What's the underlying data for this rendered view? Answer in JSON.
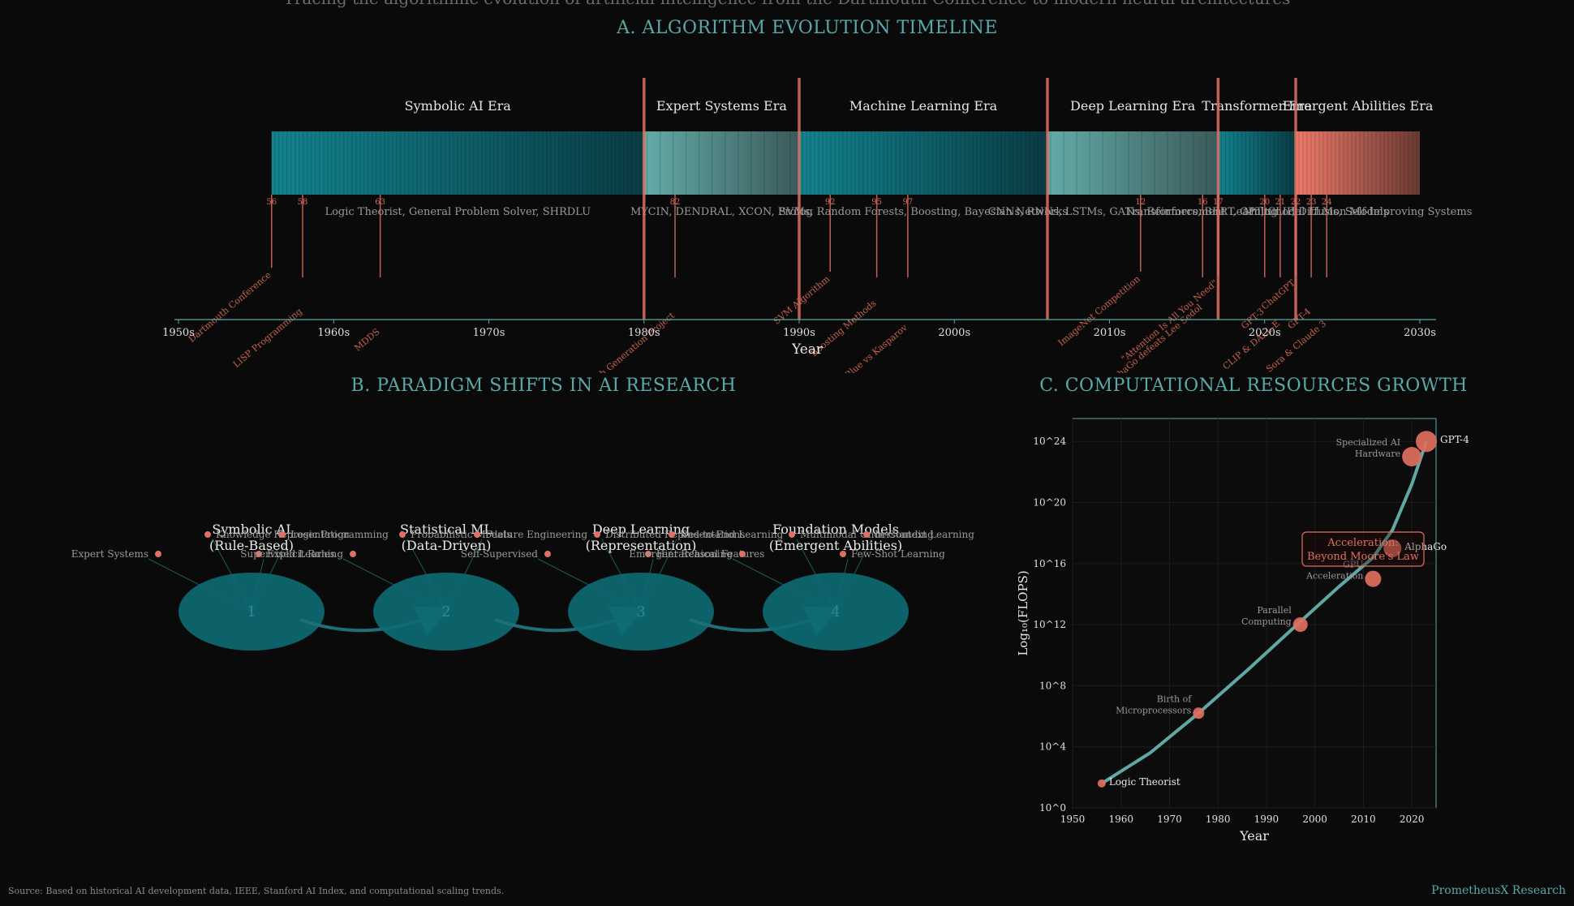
{
  "subtitle": "Tracing the algorithmic evolution of artificial intelligence from the Dartmouth Conference to modern neural architectures",
  "colors": {
    "teal": "#1f7f88",
    "teal_light": "#5fa8a4",
    "coral": "#e07060",
    "bg": "#0a0a0a",
    "axis": "#5aa9a9"
  },
  "timeline": {
    "title": "A. ALGORITHM EVOLUTION TIMELINE",
    "xlabel": "Year",
    "ticks": [
      "1950s",
      "1960s",
      "1970s",
      "1980s",
      "1990s",
      "2000s",
      "2010s",
      "2020s",
      "2030s"
    ],
    "eras": [
      {
        "name": "Symbolic AI Era",
        "start": 1956,
        "end": 1980,
        "style": "teal",
        "examples": "Logic Theorist, General Problem Solver, SHRDLU"
      },
      {
        "name": "Expert Systems Era",
        "start": 1980,
        "end": 1990,
        "style": "light",
        "examples": "MYCIN, DENDRAL, XCON, Prolog"
      },
      {
        "name": "Machine Learning Era",
        "start": 1990,
        "end": 2006,
        "style": "teal",
        "examples": "SVMs, Random Forests, Boosting, Bayesian Networks"
      },
      {
        "name": "Deep Learning Era",
        "start": 2006,
        "end": 2017,
        "style": "light",
        "examples": "CNNs, RNNs, LSTMs, GANs, Reinforcement Learning"
      },
      {
        "name": "Transformer Era",
        "start": 2017,
        "end": 2022,
        "style": "teal",
        "examples": "Transformers, BERT, GPT, CLIP, Diffusion Models"
      },
      {
        "name": "Emergent Abilities Era",
        "start": 2022,
        "end": 2030,
        "style": "coral",
        "examples": "Multimodal LLMs, Self-Improving Systems"
      }
    ],
    "events": [
      {
        "year": 1956,
        "short": "56",
        "label": "Dartmouth Conference",
        "depth": 90
      },
      {
        "year": 1958,
        "short": "58",
        "label": "LISP Programming",
        "depth": 135
      },
      {
        "year": 1963,
        "short": "63",
        "label": "MDDS",
        "depth": 160
      },
      {
        "year": 1982,
        "short": "82",
        "label": "Fifth Generation Project",
        "depth": 140
      },
      {
        "year": 1992,
        "short": "92",
        "label": "SVM Algorithm",
        "depth": 95
      },
      {
        "year": 1995,
        "short": "95",
        "label": "Boosting Methods",
        "depth": 125
      },
      {
        "year": 1997,
        "short": "97",
        "label": "Deep Blue vs Kasparov",
        "depth": 155
      },
      {
        "year": 2012,
        "short": "12",
        "label": "ImageNet Competition",
        "depth": 95
      },
      {
        "year": 2016,
        "short": "16",
        "label": "AlphaGo defeats Lee Sedol",
        "depth": 130
      },
      {
        "year": 2017,
        "short": "17",
        "label": "\"Attention Is All You Need\"",
        "depth": 100
      },
      {
        "year": 2020,
        "short": "20",
        "label": "GPT-3",
        "depth": 135
      },
      {
        "year": 2021,
        "short": "21",
        "label": "CLIP & DALL-E",
        "depth": 150
      },
      {
        "year": 2022,
        "short": "22",
        "label": "ChatGPT",
        "depth": 100
      },
      {
        "year": 2023,
        "short": "23",
        "label": "GPT-4",
        "depth": 135
      },
      {
        "year": 2024,
        "short": "24",
        "label": "Sora & Claude 3",
        "depth": 150
      }
    ]
  },
  "paradigms": {
    "title": "B. PARADIGM SHIFTS IN AI RESEARCH",
    "items": [
      {
        "num": "1",
        "title": "Symbolic AI",
        "subtitle": "(Rule-Based)",
        "top": [
          "Knowledge Representation",
          "Logic Programming"
        ],
        "bottom": [
          "Expert Systems",
          "Explicit Rules"
        ]
      },
      {
        "num": "2",
        "title": "Statistical ML",
        "subtitle": "(Data-Driven)",
        "top": [
          "Probabilistic Models",
          "Feature Engineering"
        ],
        "bottom": [
          "Supervised Learning"
        ]
      },
      {
        "num": "3",
        "title": "Deep Learning",
        "subtitle": "(Representation)",
        "top": [
          "Distributed Representations",
          "End-to-End Learning"
        ],
        "bottom": [
          "Self-Supervised",
          "Hierarchical Features"
        ]
      },
      {
        "num": "4",
        "title": "Foundation Models",
        "subtitle": "(Emergent Abilities)",
        "top": [
          "Multimodal Understanding",
          "In-Context Learning"
        ],
        "bottom": [
          "Emergent Reasoning",
          "Few-Shot Learning"
        ]
      }
    ]
  },
  "compute": {
    "title": "C. COMPUTATIONAL RESOURCES GROWTH",
    "xlabel": "Year",
    "ylabel": "Log₁₀(FLOPS)",
    "xticks": [
      "1950",
      "1960",
      "1970",
      "1980",
      "1990",
      "2000",
      "2010",
      "2020"
    ],
    "yticks": [
      "10^0",
      "10^4",
      "10^8",
      "10^12",
      "10^16",
      "10^20",
      "10^24"
    ],
    "annotation_line1": "Acceleration:",
    "annotation_line2": "Beyond Moore's Law",
    "points": [
      {
        "year": 1956,
        "log": 1.6,
        "label": "Logic Theorist",
        "size": 5
      },
      {
        "year": 1976,
        "log": 6.2,
        "label": "Birth of Microprocessors",
        "size": 7
      },
      {
        "year": 1997,
        "log": 12.0,
        "label": "Parallel Computing",
        "size": 9
      },
      {
        "year": 2012,
        "log": 15.0,
        "label": "GPU Acceleration",
        "size": 10
      },
      {
        "year": 2016,
        "log": 17.0,
        "label": "AlphaGo",
        "size": 11
      },
      {
        "year": 2020,
        "log": 23.0,
        "label": "Specialized AI Hardware",
        "size": 12
      },
      {
        "year": 2023,
        "log": 24.0,
        "label": "GPT-4",
        "size": 13
      }
    ],
    "curve": [
      {
        "year": 1956,
        "log": 1.6
      },
      {
        "year": 1966,
        "log": 3.6
      },
      {
        "year": 1976,
        "log": 6.2
      },
      {
        "year": 1986,
        "log": 9.0
      },
      {
        "year": 1997,
        "log": 12.2
      },
      {
        "year": 2005,
        "log": 14.5
      },
      {
        "year": 2012,
        "log": 16.4
      },
      {
        "year": 2016,
        "log": 18.2
      },
      {
        "year": 2020,
        "log": 21.2
      },
      {
        "year": 2023,
        "log": 24.0
      }
    ]
  },
  "footer": {
    "source": "Source: Based on historical AI development data, IEEE, Stanford AI Index, and computational scaling trends.",
    "brand": "PrometheusX Research"
  }
}
